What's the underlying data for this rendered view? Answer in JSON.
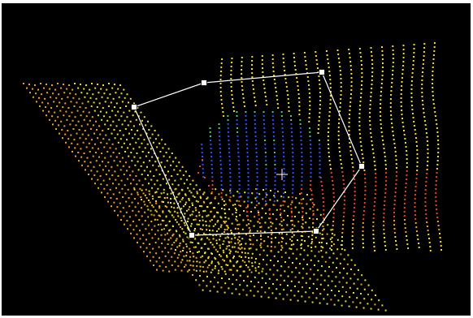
{
  "viewport": {
    "background": "#000000",
    "frame_color": "#ffffff"
  },
  "colors": {
    "point_yellow": "#f2dc2a",
    "point_orange": "#f0a020",
    "point_red": "#e8441c",
    "point_blue": "#2a50ff",
    "point_green": "#3fd36a",
    "selection_line": "#ffffff",
    "handle_fill": "#ffffff",
    "cursor": "#ffffff"
  },
  "tools": {
    "selection_polygon_icon": "polygon-lasso-icon",
    "handle_icon": "square-handle-icon",
    "cursor_icon": "crosshair-icon"
  }
}
